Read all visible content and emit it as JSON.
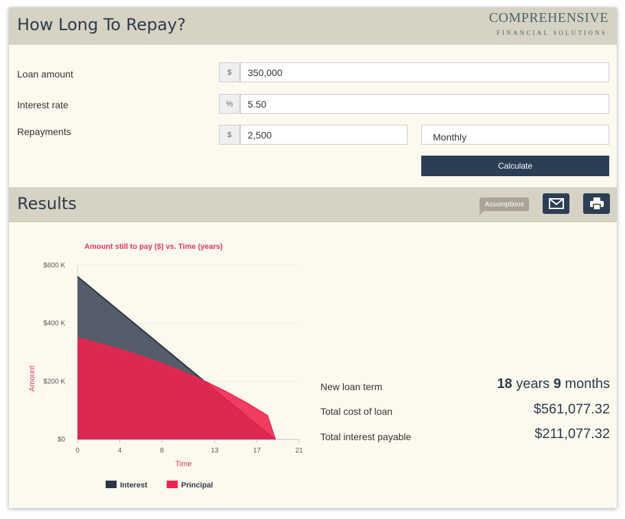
{
  "header": {
    "title": "How Long To Repay?",
    "logo_line1": "COMPREHENSIVE",
    "logo_line2": "FINANCIAL SOLUTIONS"
  },
  "form": {
    "loan_amount": {
      "label": "Loan amount",
      "prefix": "$",
      "value": "350,000"
    },
    "interest_rate": {
      "label": "Interest rate",
      "prefix": "%",
      "value": "5.50"
    },
    "repayments": {
      "label": "Repayments",
      "prefix": "$",
      "value": "2,500",
      "frequency": "Monthly"
    },
    "calculate_label": "Calculate"
  },
  "results": {
    "title": "Results",
    "assumptions_label": "Assumptions",
    "icons": {
      "email": "envelope-icon",
      "print": "printer-icon"
    },
    "term": {
      "label": "New loan term",
      "years": "18",
      "years_unit": "years",
      "months": "9",
      "months_unit": "months"
    },
    "total_cost": {
      "label": "Total cost of loan",
      "value": "$561,077.32"
    },
    "total_interest": {
      "label": "Total interest payable",
      "value": "$211,077.32"
    }
  },
  "chart_data": {
    "type": "area",
    "title": "Amount still to pay ($) vs. Time (years)",
    "xlabel": "Time",
    "ylabel": "Amount",
    "xlim": [
      0,
      21
    ],
    "ylim": [
      0,
      600000
    ],
    "x_ticks": [
      "0",
      "4",
      "8",
      "13",
      "17",
      "21"
    ],
    "y_ticks": [
      "$0",
      "$200 K",
      "$400 K",
      "$600 K"
    ],
    "grid": true,
    "legend_position": "bottom",
    "colors": {
      "interest": "#2c3547",
      "principal": "#f0224f"
    },
    "x": [
      0,
      2,
      4,
      6,
      8,
      10,
      12,
      14,
      16,
      18,
      18.75
    ],
    "series": [
      {
        "name": "Interest",
        "values": [
          561077,
          501077,
          441077,
          381077,
          321077,
          261077,
          201077,
          141077,
          81077,
          21077,
          0
        ]
      },
      {
        "name": "Principal",
        "values": [
          350000,
          331500,
          310900,
          288000,
          262400,
          233800,
          202000,
          166500,
          126900,
          82600,
          0
        ]
      }
    ]
  }
}
